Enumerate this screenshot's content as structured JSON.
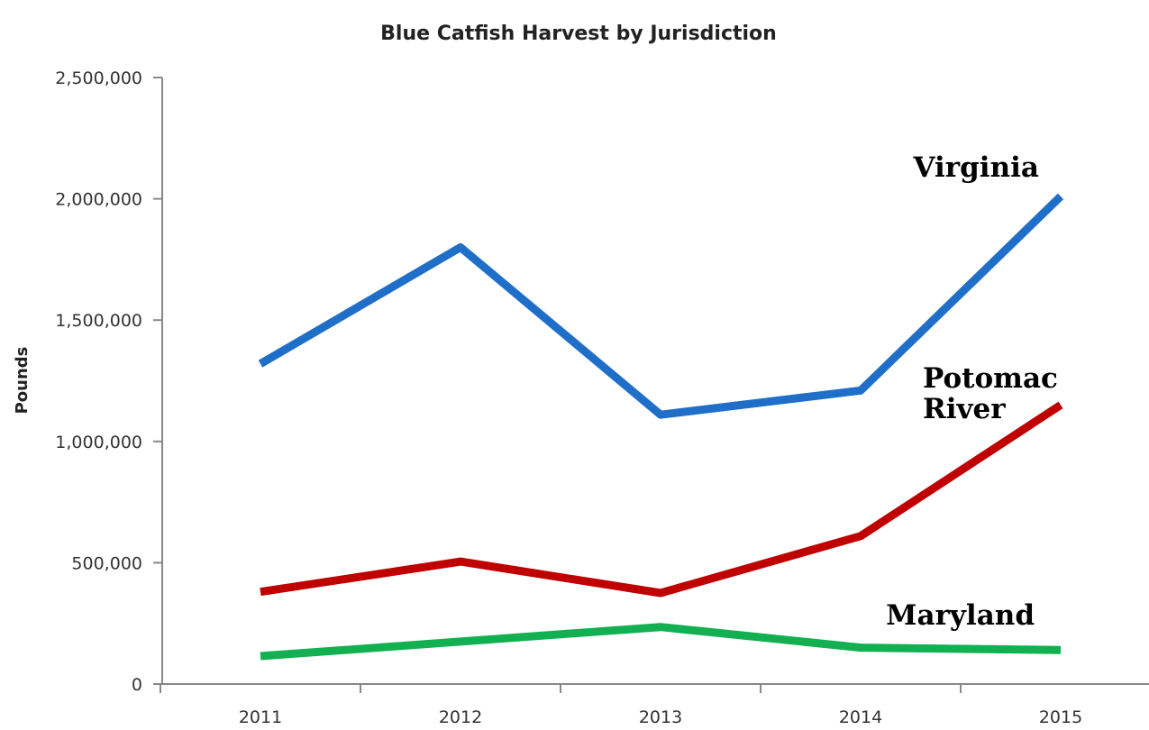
{
  "chart_data": {
    "type": "line",
    "title": "Blue Catfish Harvest by Jurisdiction",
    "xlabel": "",
    "ylabel": "Pounds",
    "categories": [
      "2011",
      "2012",
      "2013",
      "2014",
      "2015"
    ],
    "y_tick_labels": [
      "0",
      "500,000",
      "1,000,000",
      "1,500,000",
      "2,000,000",
      "2,500,000"
    ],
    "ylim": [
      0,
      2500000
    ],
    "grid": false,
    "legend": "none (series labels placed beside line ends)",
    "series": [
      {
        "name": "Virginia",
        "label_lines": [
          "Virginia"
        ],
        "color": "#1F6FC9",
        "values": [
          1320000,
          1800000,
          1110000,
          1210000,
          2010000
        ]
      },
      {
        "name": "Potomac River",
        "label_lines": [
          "Potomac",
          "River"
        ],
        "color": "#C00000",
        "values": [
          380000,
          505000,
          375000,
          610000,
          1150000
        ]
      },
      {
        "name": "Maryland",
        "label_lines": [
          "Maryland"
        ],
        "color": "#12B050",
        "values": [
          115000,
          175000,
          235000,
          150000,
          140000
        ]
      }
    ]
  }
}
